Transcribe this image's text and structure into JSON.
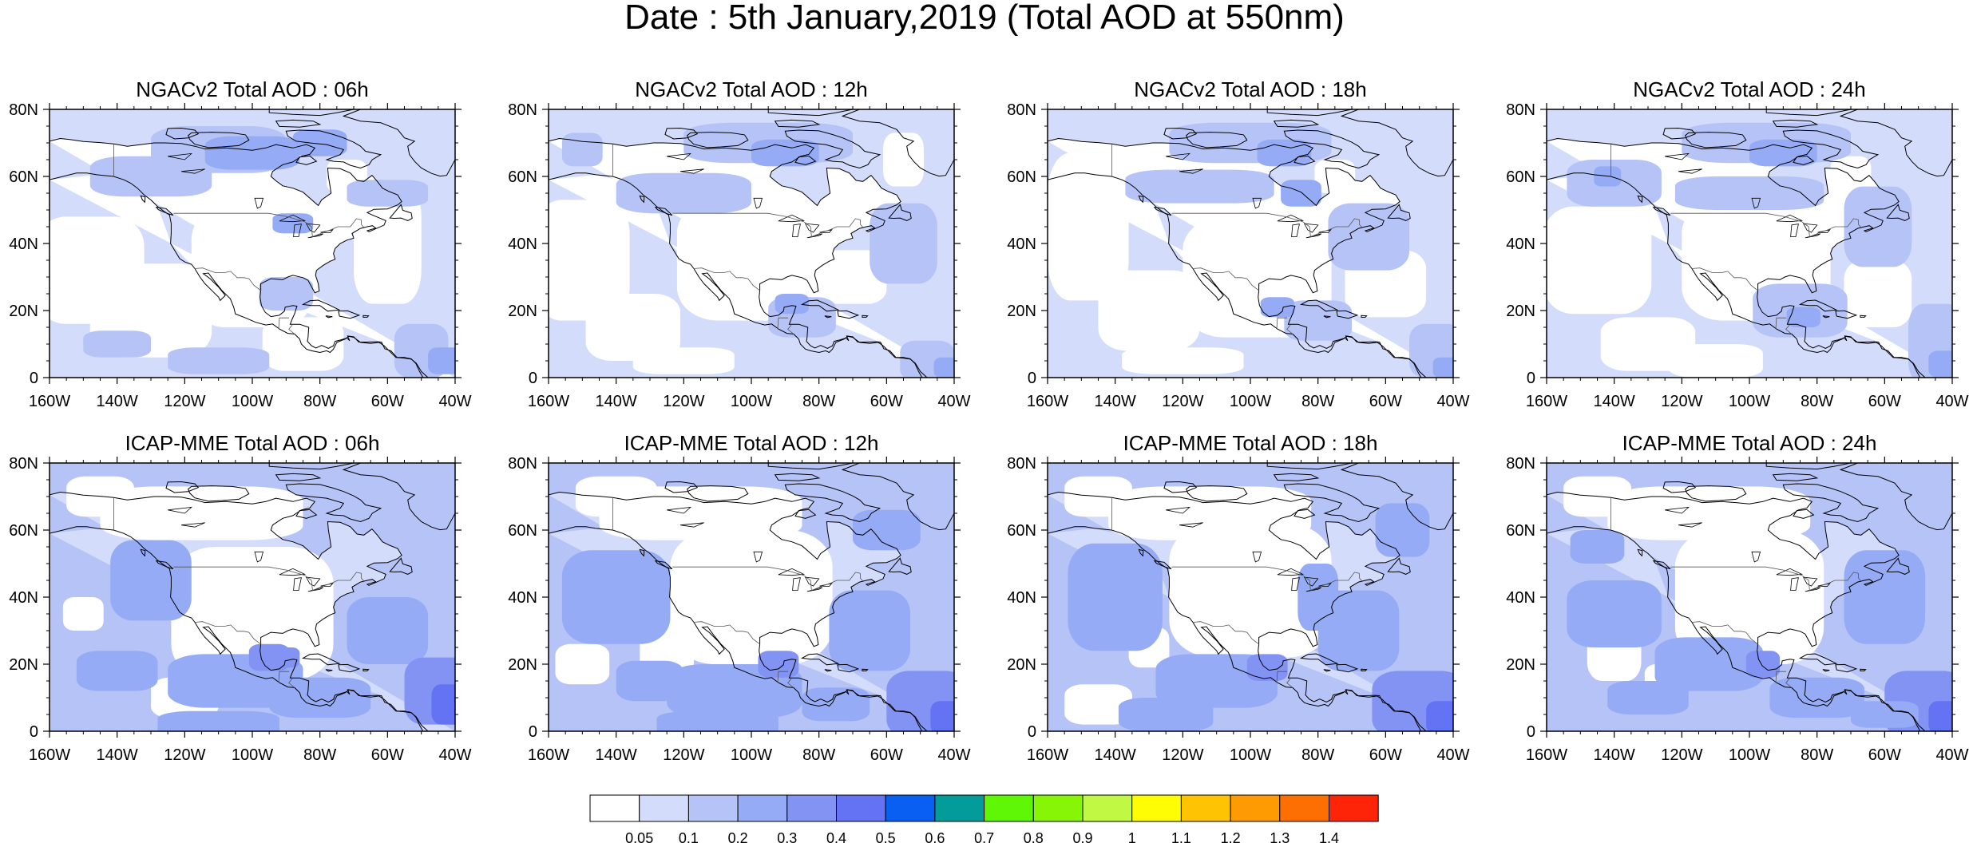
{
  "figure": {
    "title": "Date : 5th January,2019 (Total AOD at 550nm)"
  },
  "map_axes": {
    "lon_min": -160,
    "lon_max": -40,
    "lat_min": 0,
    "lat_max": 80,
    "x_tick_labels": [
      "160W",
      "140W",
      "120W",
      "100W",
      "80W",
      "60W",
      "40W"
    ],
    "y_tick_labels": [
      "0",
      "20N",
      "40N",
      "60N",
      "80N"
    ]
  },
  "panels": [
    {
      "title": "NGACv2 Total AOD : 06h",
      "model": "NGACv2",
      "lead_time": "06h",
      "background_aod_class": "0.05-0.1",
      "max_aod_class": "0.3-0.4"
    },
    {
      "title": "NGACv2 Total AOD : 12h",
      "model": "NGACv2",
      "lead_time": "12h",
      "background_aod_class": "0.05-0.1",
      "max_aod_class": "0.3-0.4"
    },
    {
      "title": "NGACv2 Total AOD : 18h",
      "model": "NGACv2",
      "lead_time": "18h",
      "background_aod_class": "0.05-0.1",
      "max_aod_class": "0.3-0.4"
    },
    {
      "title": "NGACv2 Total AOD : 24h",
      "model": "NGACv2",
      "lead_time": "24h",
      "background_aod_class": "0.05-0.1",
      "max_aod_class": "0.3-0.4"
    },
    {
      "title": "ICAP-MME Total AOD : 06h",
      "model": "ICAP-MME",
      "lead_time": "06h",
      "background_aod_class": "0.1-0.2",
      "max_aod_class": "0.4-0.5"
    },
    {
      "title": "ICAP-MME Total AOD : 12h",
      "model": "ICAP-MME",
      "lead_time": "12h",
      "background_aod_class": "0.1-0.2",
      "max_aod_class": "0.3-0.4"
    },
    {
      "title": "ICAP-MME Total AOD : 18h",
      "model": "ICAP-MME",
      "lead_time": "18h",
      "background_aod_class": "0.1-0.2",
      "max_aod_class": "0.3-0.4"
    },
    {
      "title": "ICAP-MME Total AOD : 24h",
      "model": "ICAP-MME",
      "lead_time": "24h",
      "background_aod_class": "0.1-0.2",
      "max_aod_class": "0.3-0.4"
    }
  ],
  "colorbar": {
    "levels": [
      "0.05",
      "0.1",
      "0.2",
      "0.3",
      "0.4",
      "0.5",
      "0.6",
      "0.7",
      "0.8",
      "0.9",
      "1",
      "1.1",
      "1.2",
      "1.3",
      "1.4"
    ],
    "colors": [
      "#ffffff",
      "#d4dcfb",
      "#b6c3f7",
      "#95abf5",
      "#8393f4",
      "#6473f3",
      "#0a5ff3",
      "#039c9a",
      "#5ff705",
      "#86f606",
      "#c1f843",
      "#fefd04",
      "#fec404",
      "#fe9a02",
      "#fd6f03",
      "#fd2408"
    ]
  },
  "map_colors": {
    "ocean_background": "#d4dcfb",
    "land_background": "#ffffff",
    "aod_0_1_to_0_2": "#b6c3f7",
    "aod_0_2_to_0_3": "#95abf5",
    "aod_0_3_to_0_4": "#8393f4",
    "aod_0_4_to_0_5": "#6473f3",
    "coastline": "#000000",
    "border": "#555555"
  }
}
